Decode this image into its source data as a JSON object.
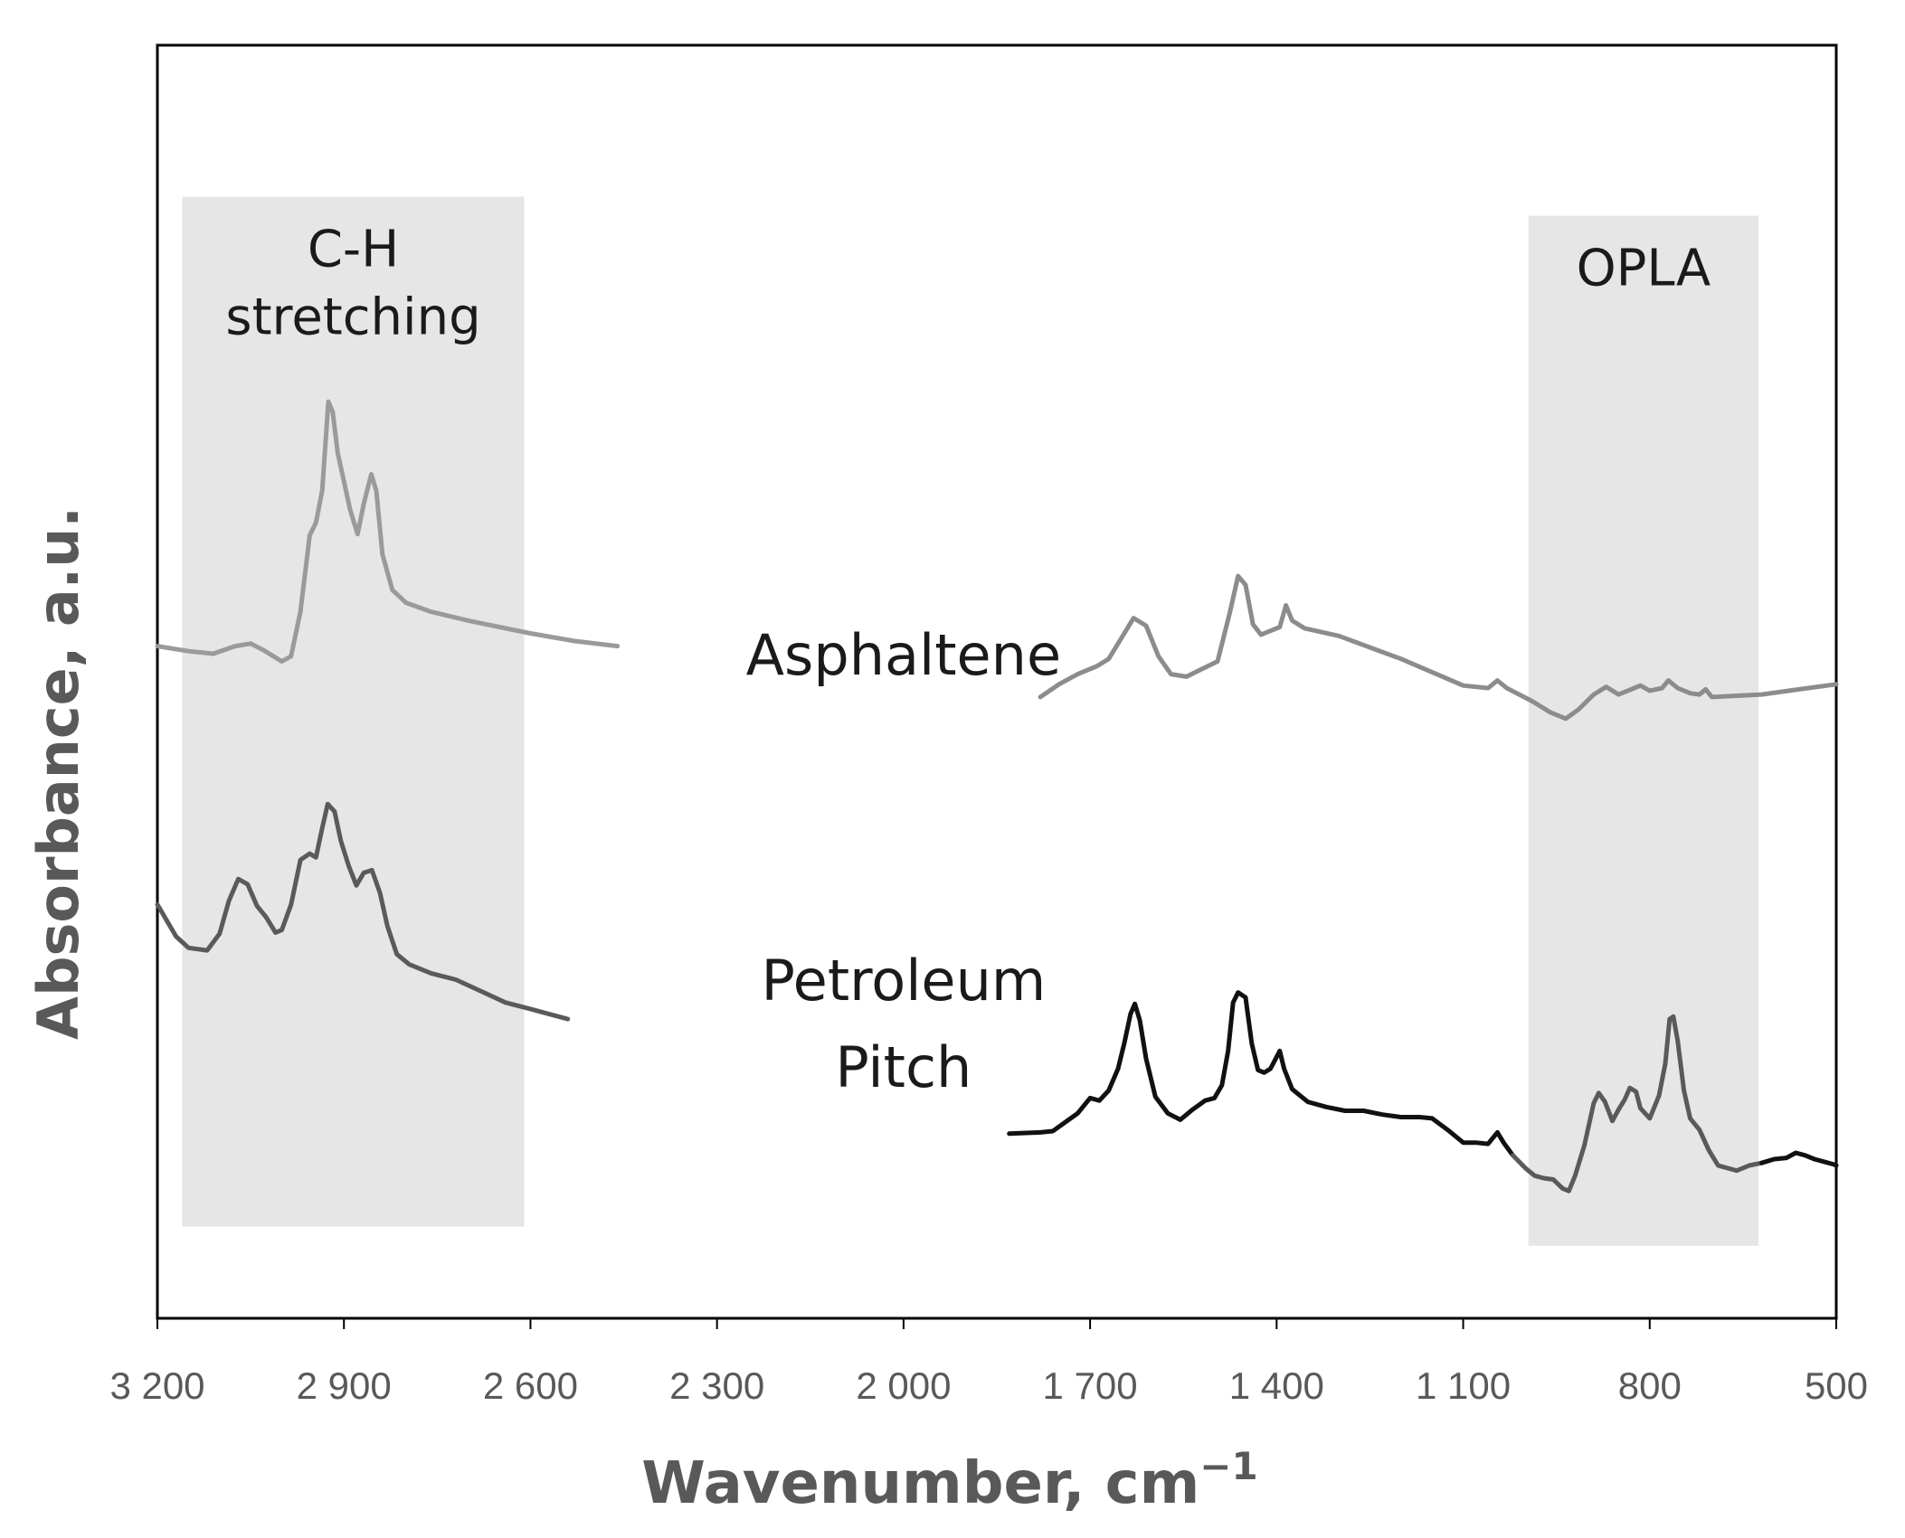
{
  "chart_data": {
    "type": "line",
    "xlabel": "Wavenumber, cm",
    "xlabel_sup": "−1",
    "ylabel": "Absorbance, a.u.",
    "xlim": [
      3200,
      500
    ],
    "ylim": [
      0,
      10
    ],
    "x_reversed": true,
    "y_ticks_shown": false,
    "grid": false,
    "xticks": [
      3200,
      2900,
      2600,
      2300,
      2000,
      1700,
      1400,
      1100,
      800,
      500
    ],
    "xtick_labels": [
      "3 200",
      "2 900",
      "2 600",
      "2 300",
      "2 000",
      "1 700",
      "1 400",
      "1 100",
      "800",
      "500"
    ],
    "bands": [
      {
        "name": "C-H stretching",
        "lines": [
          "C-H",
          "stretching"
        ],
        "x_from": 3160,
        "x_to": 2610,
        "y_from": 0.72,
        "y_to": 8.81,
        "color": "#e6e6e6"
      },
      {
        "name": "OPLA",
        "lines": [
          "OPLA"
        ],
        "x_from": 995,
        "x_to": 625,
        "y_from": 0.57,
        "y_to": 8.66,
        "color": "#e6e6e6"
      }
    ],
    "annotations": [
      {
        "text": "Asphaltene",
        "lines": [
          "Asphaltene"
        ],
        "x": 2000,
        "y": 5.2
      },
      {
        "text": "Petroleum Pitch",
        "lines": [
          "Petroleum",
          "Pitch"
        ],
        "x": 2000,
        "y": 2.3
      }
    ],
    "series": [
      {
        "name": "Asphaltene",
        "color": "#9a9a9a",
        "segments": [
          [
            [
              3200,
              5.28
            ],
            [
              3150,
              5.24
            ],
            [
              3110,
              5.22
            ],
            [
              3075,
              5.28
            ],
            [
              3050,
              5.3
            ],
            [
              3030,
              5.25
            ],
            [
              3000,
              5.16
            ],
            [
              2985,
              5.2
            ],
            [
              2970,
              5.55
            ],
            [
              2955,
              6.15
            ],
            [
              2945,
              6.25
            ],
            [
              2935,
              6.5
            ],
            [
              2925,
              7.2
            ],
            [
              2918,
              7.12
            ],
            [
              2910,
              6.8
            ],
            [
              2890,
              6.35
            ],
            [
              2878,
              6.16
            ],
            [
              2868,
              6.4
            ],
            [
              2856,
              6.63
            ],
            [
              2848,
              6.5
            ],
            [
              2838,
              6.0
            ],
            [
              2822,
              5.72
            ],
            [
              2800,
              5.62
            ],
            [
              2760,
              5.55
            ],
            [
              2700,
              5.48
            ],
            [
              2600,
              5.38
            ],
            [
              2530,
              5.32
            ],
            [
              2460,
              5.28
            ]
          ]
        ]
      },
      {
        "name": "Asphaltene",
        "color": "#8c8c8c",
        "segments": [
          [
            [
              1780,
              4.88
            ],
            [
              1750,
              4.98
            ],
            [
              1720,
              5.06
            ],
            [
              1690,
              5.12
            ],
            [
              1670,
              5.18
            ],
            [
              1650,
              5.34
            ],
            [
              1630,
              5.5
            ],
            [
              1610,
              5.44
            ],
            [
              1590,
              5.2
            ],
            [
              1570,
              5.06
            ],
            [
              1545,
              5.04
            ],
            [
              1520,
              5.1
            ],
            [
              1495,
              5.16
            ],
            [
              1475,
              5.55
            ],
            [
              1462,
              5.83
            ],
            [
              1450,
              5.76
            ],
            [
              1438,
              5.45
            ],
            [
              1425,
              5.37
            ],
            [
              1410,
              5.4
            ],
            [
              1395,
              5.43
            ],
            [
              1385,
              5.6
            ],
            [
              1375,
              5.48
            ],
            [
              1355,
              5.42
            ],
            [
              1300,
              5.36
            ],
            [
              1200,
              5.18
            ],
            [
              1100,
              4.97
            ],
            [
              1060,
              4.95
            ],
            [
              1045,
              5.01
            ],
            [
              1030,
              4.95
            ],
            [
              990,
              4.85
            ],
            [
              960,
              4.76
            ],
            [
              935,
              4.71
            ],
            [
              915,
              4.78
            ],
            [
              890,
              4.9
            ],
            [
              870,
              4.96
            ],
            [
              850,
              4.9
            ],
            [
              830,
              4.94
            ],
            [
              815,
              4.97
            ],
            [
              800,
              4.93
            ],
            [
              780,
              4.95
            ],
            [
              770,
              5.01
            ],
            [
              755,
              4.95
            ],
            [
              735,
              4.91
            ],
            [
              720,
              4.9
            ],
            [
              710,
              4.94
            ],
            [
              700,
              4.88
            ],
            [
              660,
              4.89
            ],
            [
              620,
              4.9
            ],
            [
              560,
              4.94
            ],
            [
              500,
              4.98
            ]
          ]
        ]
      },
      {
        "name": "Petroleum Pitch",
        "color": "#5a5a5a",
        "segments": [
          [
            [
              3200,
              3.25
            ],
            [
              3170,
              3.0
            ],
            [
              3150,
              2.91
            ],
            [
              3120,
              2.89
            ],
            [
              3100,
              3.02
            ],
            [
              3085,
              3.28
            ],
            [
              3070,
              3.45
            ],
            [
              3055,
              3.41
            ],
            [
              3040,
              3.24
            ],
            [
              3025,
              3.15
            ],
            [
              3010,
              3.03
            ],
            [
              3000,
              3.05
            ],
            [
              2985,
              3.25
            ],
            [
              2970,
              3.6
            ],
            [
              2955,
              3.65
            ],
            [
              2945,
              3.62
            ],
            [
              2935,
              3.85
            ],
            [
              2926,
              4.04
            ],
            [
              2915,
              3.98
            ],
            [
              2905,
              3.75
            ],
            [
              2892,
              3.55
            ],
            [
              2880,
              3.4
            ],
            [
              2868,
              3.5
            ],
            [
              2855,
              3.52
            ],
            [
              2842,
              3.34
            ],
            [
              2830,
              3.08
            ],
            [
              2815,
              2.86
            ],
            [
              2795,
              2.78
            ],
            [
              2760,
              2.71
            ],
            [
              2720,
              2.66
            ],
            [
              2680,
              2.57
            ],
            [
              2640,
              2.48
            ],
            [
              2600,
              2.43
            ],
            [
              2540,
              2.35
            ]
          ]
        ]
      },
      {
        "name": "Petroleum Pitch",
        "color": "#111111",
        "segments": [
          [
            [
              1830,
              1.45
            ],
            [
              1780,
              1.46
            ],
            [
              1760,
              1.47
            ],
            [
              1740,
              1.54
            ],
            [
              1720,
              1.61
            ],
            [
              1700,
              1.73
            ],
            [
              1685,
              1.71
            ],
            [
              1670,
              1.79
            ],
            [
              1655,
              1.96
            ],
            [
              1645,
              2.16
            ],
            [
              1635,
              2.39
            ],
            [
              1628,
              2.47
            ],
            [
              1620,
              2.34
            ],
            [
              1610,
              2.04
            ],
            [
              1595,
              1.74
            ],
            [
              1575,
              1.61
            ],
            [
              1555,
              1.56
            ],
            [
              1535,
              1.64
            ],
            [
              1515,
              1.71
            ],
            [
              1500,
              1.73
            ],
            [
              1488,
              1.83
            ],
            [
              1478,
              2.1
            ],
            [
              1470,
              2.48
            ],
            [
              1462,
              2.56
            ],
            [
              1450,
              2.52
            ],
            [
              1440,
              2.16
            ],
            [
              1430,
              1.95
            ],
            [
              1420,
              1.93
            ],
            [
              1410,
              1.96
            ],
            [
              1395,
              2.1
            ],
            [
              1388,
              1.96
            ],
            [
              1375,
              1.8
            ],
            [
              1350,
              1.7
            ],
            [
              1320,
              1.66
            ],
            [
              1290,
              1.63
            ],
            [
              1260,
              1.63
            ],
            [
              1230,
              1.6
            ],
            [
              1200,
              1.58
            ],
            [
              1170,
              1.58
            ],
            [
              1150,
              1.57
            ],
            [
              1125,
              1.48
            ],
            [
              1100,
              1.38
            ],
            [
              1080,
              1.38
            ],
            [
              1060,
              1.37
            ],
            [
              1045,
              1.46
            ],
            [
              1035,
              1.38
            ],
            [
              1020,
              1.28
            ]
          ]
        ]
      },
      {
        "name": "Petroleum Pitch",
        "color": "#5a5a5a",
        "segments": [
          [
            [
              1020,
              1.28
            ],
            [
              1000,
              1.18
            ],
            [
              985,
              1.12
            ],
            [
              970,
              1.1
            ],
            [
              955,
              1.09
            ],
            [
              940,
              1.02
            ],
            [
              930,
              1.0
            ],
            [
              920,
              1.12
            ],
            [
              905,
              1.36
            ],
            [
              890,
              1.69
            ],
            [
              882,
              1.77
            ],
            [
              872,
              1.7
            ],
            [
              860,
              1.55
            ],
            [
              850,
              1.64
            ],
            [
              840,
              1.72
            ],
            [
              832,
              1.81
            ],
            [
              822,
              1.78
            ],
            [
              815,
              1.65
            ],
            [
              800,
              1.57
            ],
            [
              785,
              1.75
            ],
            [
              775,
              2.0
            ],
            [
              768,
              2.35
            ],
            [
              762,
              2.37
            ],
            [
              755,
              2.18
            ],
            [
              745,
              1.79
            ],
            [
              735,
              1.57
            ],
            [
              720,
              1.48
            ],
            [
              705,
              1.32
            ],
            [
              690,
              1.2
            ],
            [
              675,
              1.18
            ],
            [
              660,
              1.16
            ],
            [
              640,
              1.2
            ],
            [
              620,
              1.22
            ]
          ]
        ]
      },
      {
        "name": "Petroleum Pitch",
        "color": "#111111",
        "segments": [
          [
            [
              620,
              1.22
            ],
            [
              600,
              1.25
            ],
            [
              580,
              1.26
            ],
            [
              565,
              1.3
            ],
            [
              550,
              1.28
            ],
            [
              535,
              1.25
            ],
            [
              520,
              1.23
            ],
            [
              505,
              1.21
            ],
            [
              500,
              1.2
            ]
          ]
        ]
      }
    ]
  }
}
